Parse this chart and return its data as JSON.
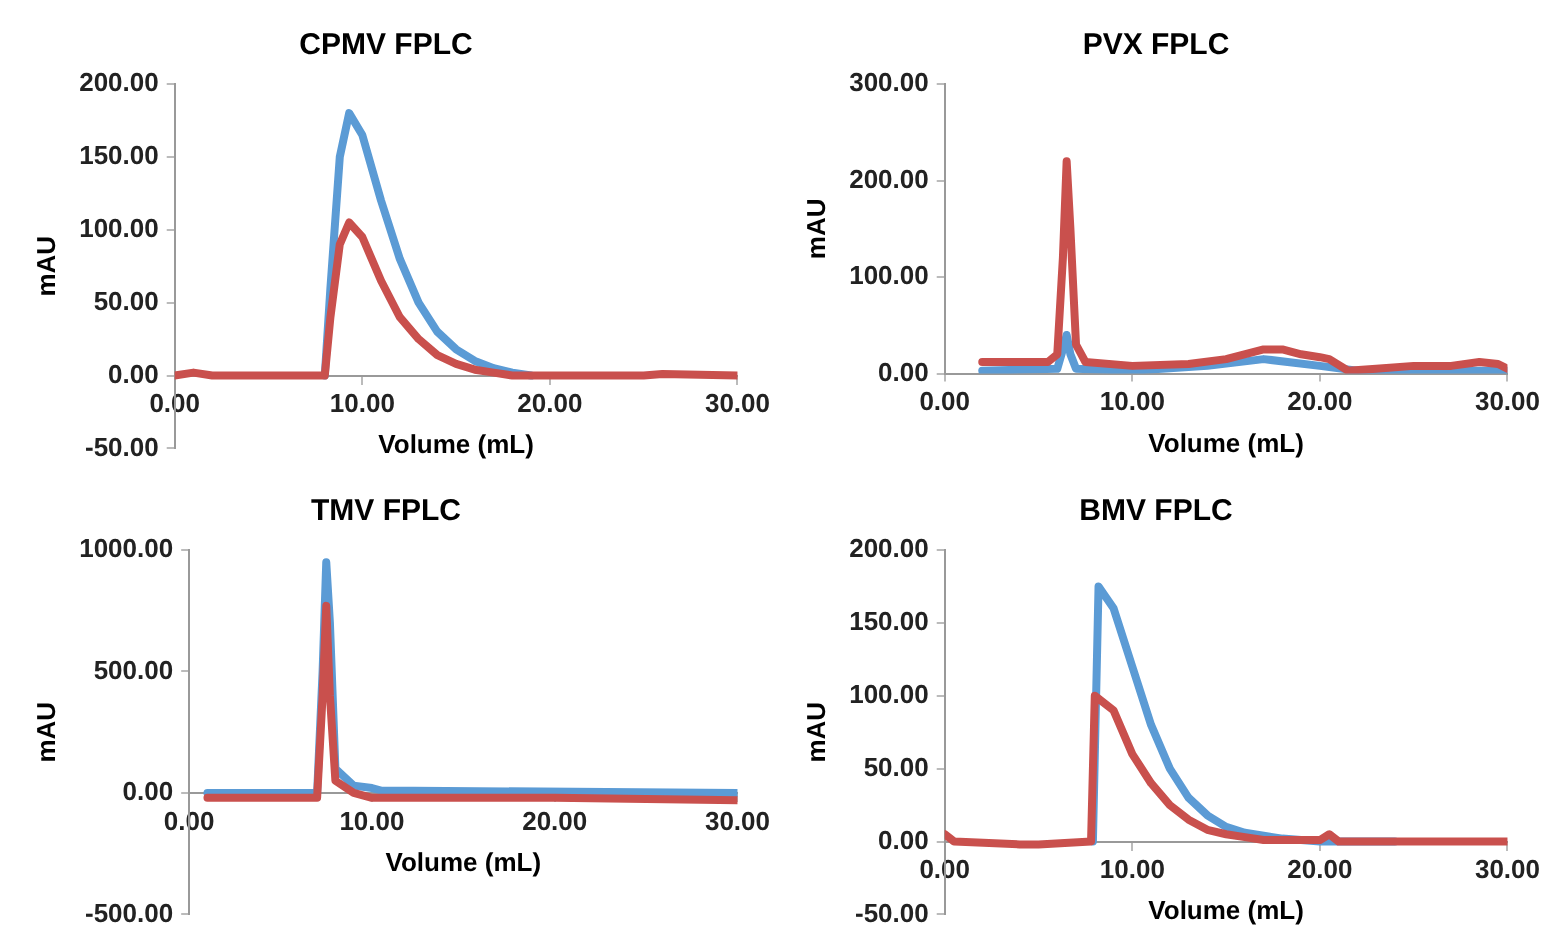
{
  "chart_data": [
    {
      "type": "line",
      "title": "CPMV FPLC",
      "xlabel": "Volume (mL)",
      "ylabel": "mAU",
      "xlim": [
        0,
        30
      ],
      "xticks": [
        {
          "value": 0,
          "label": "0.00"
        },
        {
          "value": 10,
          "label": "10.00"
        },
        {
          "value": 20,
          "label": "20.00"
        },
        {
          "value": 30,
          "label": "30.00"
        }
      ],
      "ylim": [
        -50,
        200
      ],
      "yticks": [
        {
          "value": -50,
          "label": "-50.00"
        },
        {
          "value": 0,
          "label": "0.00"
        },
        {
          "value": 50,
          "label": "50.00"
        },
        {
          "value": 100,
          "label": "100.00"
        },
        {
          "value": 150,
          "label": "150.00"
        },
        {
          "value": 200,
          "label": "200.00"
        }
      ],
      "marker": "none",
      "series": [
        {
          "color": "#5b9bd5",
          "x": [
            8,
            8.3,
            8.8,
            9.3,
            10,
            11,
            12,
            13,
            14,
            15,
            16,
            17,
            18,
            19
          ],
          "values": [
            0,
            60,
            150,
            180,
            165,
            120,
            80,
            50,
            30,
            18,
            10,
            5,
            2,
            0
          ]
        },
        {
          "color": "#c9504d",
          "x": [
            0,
            1,
            2,
            8,
            8.3,
            8.8,
            9.3,
            10,
            11,
            12,
            13,
            14,
            15,
            16,
            17,
            18,
            25,
            26,
            30
          ],
          "values": [
            0,
            2,
            0,
            0,
            40,
            90,
            105,
            95,
            65,
            40,
            25,
            14,
            8,
            4,
            2,
            0,
            0,
            1,
            0
          ]
        }
      ]
    },
    {
      "type": "line",
      "title": "PVX FPLC",
      "xlabel": "Volume (mL)",
      "ylabel": "mAU",
      "xlim": [
        0,
        30
      ],
      "xticks": [
        {
          "value": 0,
          "label": "0.00"
        },
        {
          "value": 10,
          "label": "10.00"
        },
        {
          "value": 20,
          "label": "20.00"
        },
        {
          "value": 30,
          "label": "30.00"
        }
      ],
      "ylim": [
        0,
        300
      ],
      "yticks": [
        {
          "value": 0,
          "label": "0.00"
        },
        {
          "value": 100,
          "label": "100.00"
        },
        {
          "value": 200,
          "label": "200.00"
        },
        {
          "value": 300,
          "label": "300.00"
        }
      ],
      "marker": "none",
      "series": [
        {
          "color": "#5b9bd5",
          "x": [
            2,
            6,
            6.3,
            6.5,
            6.7,
            7,
            10,
            14,
            17,
            20,
            22,
            30
          ],
          "values": [
            3,
            5,
            25,
            40,
            20,
            5,
            3,
            8,
            15,
            8,
            3,
            3
          ]
        },
        {
          "color": "#c9504d",
          "x": [
            2,
            5.5,
            6,
            6.3,
            6.5,
            6.7,
            7,
            7.5,
            10,
            13,
            15,
            17,
            18,
            19,
            20,
            20.5,
            21.5,
            23,
            25,
            27,
            28.5,
            29.5,
            30
          ],
          "values": [
            12,
            12,
            20,
            120,
            220,
            150,
            30,
            12,
            8,
            10,
            15,
            25,
            25,
            20,
            17,
            15,
            3,
            5,
            8,
            8,
            12,
            10,
            5
          ]
        }
      ]
    },
    {
      "type": "line",
      "title": "TMV FPLC",
      "xlabel": "Volume (mL)",
      "ylabel": "mAU",
      "xlim": [
        0,
        30
      ],
      "xticks": [
        {
          "value": 0,
          "label": "0.00"
        },
        {
          "value": 10,
          "label": "10.00"
        },
        {
          "value": 20,
          "label": "20.00"
        },
        {
          "value": 30,
          "label": "30.00"
        }
      ],
      "ylim": [
        -500,
        1000
      ],
      "yticks": [
        {
          "value": -500,
          "label": "-500.00"
        },
        {
          "value": 0,
          "label": "0.00"
        },
        {
          "value": 500,
          "label": "500.00"
        },
        {
          "value": 1000,
          "label": "1000.00"
        }
      ],
      "marker": "none",
      "series": [
        {
          "color": "#5b9bd5",
          "x": [
            1,
            7,
            7.3,
            7.5,
            7.7,
            8,
            9,
            10,
            10.5,
            30
          ],
          "values": [
            0,
            0,
            500,
            950,
            700,
            100,
            30,
            20,
            10,
            0
          ]
        },
        {
          "color": "#c9504d",
          "x": [
            1,
            7,
            7.3,
            7.5,
            7.7,
            8,
            9,
            10,
            20,
            30
          ],
          "values": [
            -20,
            -20,
            400,
            770,
            400,
            50,
            0,
            -20,
            -20,
            -30
          ]
        }
      ]
    },
    {
      "type": "line",
      "title": "BMV FPLC",
      "xlabel": "Volume (mL)",
      "ylabel": "mAU",
      "xlim": [
        0,
        30
      ],
      "xticks": [
        {
          "value": 0,
          "label": "0.00"
        },
        {
          "value": 10,
          "label": "10.00"
        },
        {
          "value": 20,
          "label": "20.00"
        },
        {
          "value": 30,
          "label": "30.00"
        }
      ],
      "ylim": [
        -50,
        200
      ],
      "yticks": [
        {
          "value": -50,
          "label": "-50.00"
        },
        {
          "value": 0,
          "label": "0.00"
        },
        {
          "value": 50,
          "label": "50.00"
        },
        {
          "value": 100,
          "label": "100.00"
        },
        {
          "value": 150,
          "label": "150.00"
        },
        {
          "value": 200,
          "label": "200.00"
        }
      ],
      "marker": "none",
      "series": [
        {
          "color": "#5b9bd5",
          "x": [
            7.9,
            8.2,
            9,
            10,
            11,
            12,
            13,
            14,
            15,
            16,
            17,
            18,
            20,
            24
          ],
          "values": [
            0,
            175,
            160,
            120,
            80,
            50,
            30,
            18,
            10,
            6,
            4,
            2,
            0,
            0
          ]
        },
        {
          "color": "#c9504d",
          "x": [
            0,
            0.5,
            4,
            5,
            7.8,
            8,
            9,
            10,
            11,
            12,
            13,
            14,
            15,
            16,
            17,
            20,
            20.5,
            21,
            30
          ],
          "values": [
            5,
            0,
            -2,
            -2,
            0,
            100,
            90,
            60,
            40,
            25,
            15,
            8,
            5,
            3,
            1,
            1,
            5,
            0,
            0
          ]
        }
      ]
    }
  ]
}
